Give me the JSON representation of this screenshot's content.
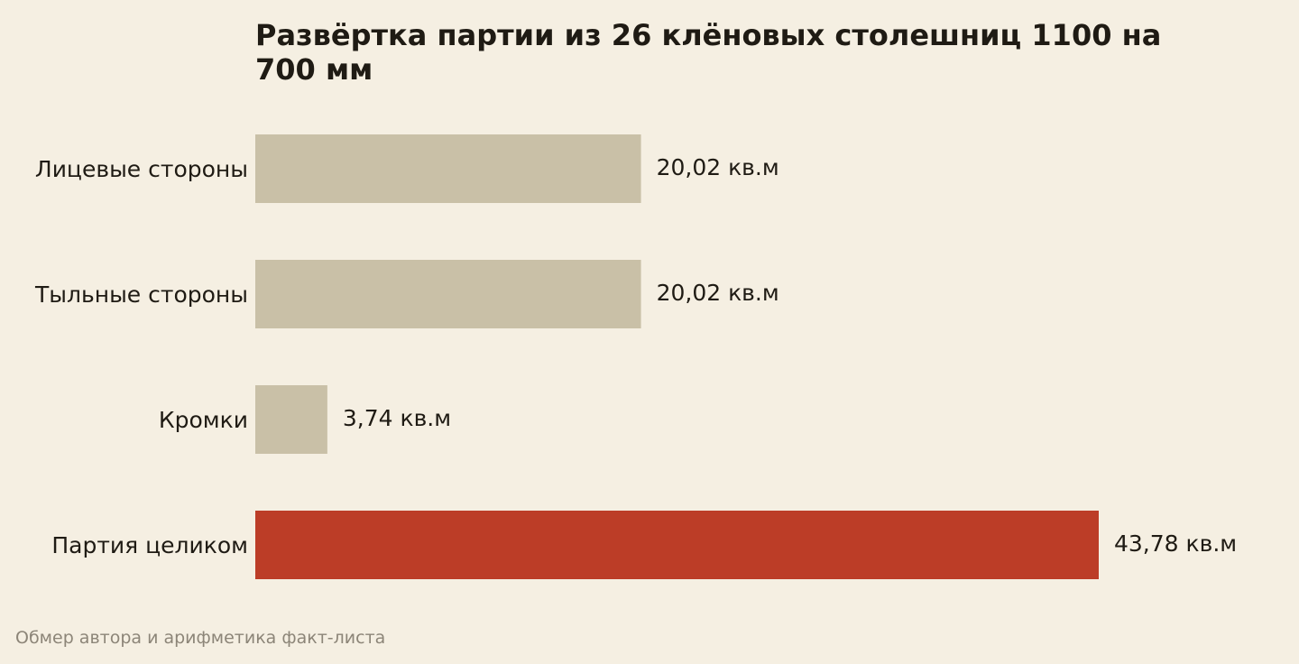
{
  "chart_data": {
    "type": "bar",
    "orientation": "horizontal",
    "title": "Развёртка партии из 26 клёновых столешниц 1100 на 700 мм",
    "categories": [
      "Лицевые стороны",
      "Тыльные стороны",
      "Кромки",
      "Партия целиком"
    ],
    "values": [
      20.02,
      20.02,
      3.74,
      43.78
    ],
    "value_labels": [
      "20,02 кв.м",
      "20,02 кв.м",
      "3,74 кв.м",
      "43,78 кв.м"
    ],
    "xlabel": "",
    "ylabel": "",
    "xlim": [
      0,
      43.78
    ],
    "grid": false,
    "legend": "none",
    "colors": {
      "default": "#c9c0a7",
      "highlight": "#bc3d27"
    },
    "highlight_index": 3
  },
  "footer": {
    "source": "Обмер автора и арифметика факт-листа"
  },
  "colors": {
    "background": "#f5efe2",
    "text": "#1f1b14",
    "muted_text": "#8c8578"
  }
}
